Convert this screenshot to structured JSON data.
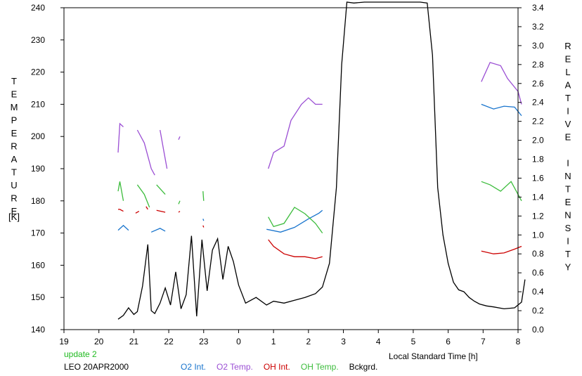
{
  "chart_data": {
    "type": "line",
    "left_axis_label": "TEMPERATURE",
    "left_axis_unit": "[K]",
    "right_axis_label": "RELATIVE INTENSITY",
    "xlabel": "Local Standard Time [h]",
    "x_tick_labels": [
      "19",
      "20",
      "21",
      "22",
      "23",
      "0",
      "1",
      "2",
      "3",
      "4",
      "5",
      "6",
      "7",
      "8"
    ],
    "xlim": [
      19,
      32
    ],
    "ylim_left": [
      140,
      240
    ],
    "ylim_right": [
      0,
      3.4
    ],
    "y_left_ticks": [
      140,
      150,
      160,
      170,
      180,
      190,
      200,
      210,
      220,
      230,
      240
    ],
    "y_right_ticks": [
      "0.0",
      "0.2",
      "0.4",
      "0.6",
      "0.8",
      "1.0",
      "1.2",
      "1.4",
      "1.6",
      "1.8",
      "2.0",
      "2.2",
      "2.4",
      "2.6",
      "2.8",
      "3.0",
      "3.2",
      "3.4"
    ],
    "grid": false,
    "annotations": {
      "status": "update 2",
      "station": "LEO 20APR2000"
    },
    "series": [
      {
        "name": "O2 Int.",
        "axis": "right",
        "color": "#1874cd",
        "segments": [
          [
            [
              20.55,
              1.05
            ],
            [
              20.7,
              1.1
            ],
            [
              20.85,
              1.05
            ]
          ],
          [
            [
              21.5,
              1.03
            ],
            [
              21.75,
              1.07
            ],
            [
              21.9,
              1.04
            ]
          ],
          [
            [
              22.98,
              1.17
            ],
            [
              23.0,
              1.15
            ]
          ],
          [
            [
              24.8,
              1.06
            ],
            [
              25.2,
              1.03
            ],
            [
              25.6,
              1.08
            ],
            [
              26.0,
              1.17
            ],
            [
              26.3,
              1.23
            ],
            [
              26.4,
              1.26
            ]
          ],
          [
            [
              30.95,
              2.38
            ],
            [
              31.3,
              2.33
            ],
            [
              31.6,
              2.36
            ],
            [
              31.9,
              2.35
            ],
            [
              32.1,
              2.26
            ]
          ]
        ]
      },
      {
        "name": "O2 Temp.",
        "axis": "left",
        "color": "#9b4fd4",
        "segments": [
          [
            [
              20.55,
              195
            ],
            [
              20.6,
              204
            ],
            [
              20.7,
              203
            ]
          ],
          [
            [
              21.1,
              202
            ],
            [
              21.3,
              198
            ],
            [
              21.5,
              190
            ],
            [
              21.6,
              188
            ]
          ],
          [
            [
              21.75,
              202
            ],
            [
              21.85,
              196
            ],
            [
              21.95,
              190
            ]
          ],
          [
            [
              22.28,
              199
            ],
            [
              22.32,
              200
            ]
          ],
          [
            [
              24.85,
              190
            ],
            [
              25.0,
              195
            ],
            [
              25.3,
              197
            ],
            [
              25.5,
              205
            ],
            [
              25.8,
              210
            ],
            [
              26.0,
              212
            ],
            [
              26.2,
              210
            ],
            [
              26.4,
              210
            ]
          ],
          [
            [
              30.95,
              217
            ],
            [
              31.2,
              223
            ],
            [
              31.5,
              222
            ],
            [
              31.7,
              218
            ],
            [
              32.0,
              214
            ],
            [
              32.1,
              210
            ]
          ]
        ]
      },
      {
        "name": "OH Int.",
        "axis": "right",
        "color": "#cc0000",
        "segments": [
          [
            [
              20.55,
              1.27
            ],
            [
              20.6,
              1.27
            ],
            [
              20.7,
              1.25
            ]
          ],
          [
            [
              21.05,
              1.23
            ],
            [
              21.15,
              1.25
            ]
          ],
          [
            [
              21.35,
              1.3
            ],
            [
              21.4,
              1.27
            ]
          ],
          [
            [
              21.65,
              1.26
            ],
            [
              21.9,
              1.24
            ]
          ],
          [
            [
              22.28,
              1.24
            ],
            [
              22.32,
              1.25
            ]
          ],
          [
            [
              22.98,
              1.1
            ],
            [
              23.0,
              1.08
            ]
          ],
          [
            [
              24.85,
              0.95
            ],
            [
              25.0,
              0.88
            ],
            [
              25.3,
              0.8
            ],
            [
              25.6,
              0.77
            ],
            [
              25.9,
              0.77
            ],
            [
              26.2,
              0.75
            ],
            [
              26.4,
              0.77
            ]
          ],
          [
            [
              30.95,
              0.83
            ],
            [
              31.3,
              0.8
            ],
            [
              31.6,
              0.81
            ],
            [
              31.9,
              0.85
            ],
            [
              32.1,
              0.88
            ]
          ]
        ]
      },
      {
        "name": "OH Temp.",
        "axis": "left",
        "color": "#3cbc3c",
        "segments": [
          [
            [
              20.55,
              183
            ],
            [
              20.6,
              186
            ],
            [
              20.7,
              180
            ]
          ],
          [
            [
              21.1,
              185
            ],
            [
              21.3,
              182
            ],
            [
              21.45,
              178
            ]
          ],
          [
            [
              21.65,
              185
            ],
            [
              21.9,
              182
            ]
          ],
          [
            [
              22.28,
              179
            ],
            [
              22.32,
              180
            ]
          ],
          [
            [
              22.98,
              183
            ],
            [
              23.0,
              180
            ]
          ],
          [
            [
              24.85,
              175
            ],
            [
              25.0,
              172
            ],
            [
              25.3,
              173
            ],
            [
              25.6,
              178
            ],
            [
              25.9,
              176
            ],
            [
              26.2,
              173
            ],
            [
              26.4,
              170
            ]
          ],
          [
            [
              30.95,
              186
            ],
            [
              31.2,
              185
            ],
            [
              31.5,
              183
            ],
            [
              31.8,
              186
            ],
            [
              32.1,
              180
            ]
          ]
        ]
      },
      {
        "name": "Bckgrd.",
        "axis": "right",
        "color": "#000000",
        "x": [
          20.55,
          20.7,
          20.85,
          21.0,
          21.1,
          21.25,
          21.4,
          21.5,
          21.6,
          21.75,
          21.9,
          22.05,
          22.2,
          22.35,
          22.5,
          22.65,
          22.8,
          22.95,
          23.1,
          23.25,
          23.4,
          23.55,
          23.7,
          23.85,
          24.0,
          24.2,
          24.5,
          24.8,
          25.0,
          25.3,
          25.6,
          25.9,
          26.2,
          26.4,
          26.6,
          26.8,
          26.95,
          27.1,
          27.3,
          27.6,
          29.2,
          29.4,
          29.55,
          29.7,
          29.85,
          30.0,
          30.15,
          30.3,
          30.45,
          30.6,
          30.75,
          30.9,
          31.1,
          31.3,
          31.6,
          31.9,
          32.1,
          32.2
        ],
        "values": [
          0.11,
          0.15,
          0.23,
          0.16,
          0.19,
          0.46,
          0.9,
          0.2,
          0.17,
          0.28,
          0.44,
          0.26,
          0.61,
          0.22,
          0.37,
          0.99,
          0.14,
          0.95,
          0.41,
          0.84,
          0.96,
          0.53,
          0.88,
          0.72,
          0.47,
          0.28,
          0.34,
          0.26,
          0.3,
          0.28,
          0.31,
          0.34,
          0.38,
          0.45,
          0.7,
          1.5,
          2.8,
          3.5,
          3.45,
          3.5,
          3.5,
          3.45,
          2.9,
          1.5,
          1.0,
          0.7,
          0.5,
          0.42,
          0.4,
          0.34,
          0.3,
          0.27,
          0.25,
          0.24,
          0.22,
          0.23,
          0.29,
          0.53
        ]
      }
    ]
  }
}
